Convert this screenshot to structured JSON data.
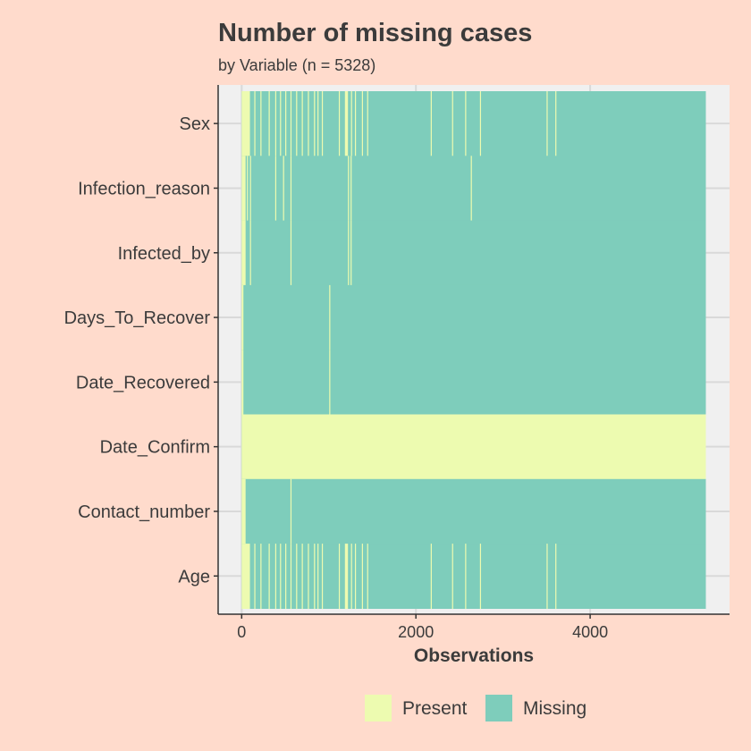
{
  "chart_data": {
    "type": "heatmap",
    "title": "Number of missing cases",
    "subtitle": "by Variable (n = 5328)",
    "xlabel": "Observations",
    "ylabel": "",
    "xlim": [
      -270,
      5600
    ],
    "xticks": [
      0,
      2000,
      4000
    ],
    "n": 5328,
    "variables": [
      "Sex",
      "Infection_reason",
      "Infected_by",
      "Days_To_Recover",
      "Date_Recovered",
      "Date_Confirm",
      "Contact_number",
      "Age"
    ],
    "legend": [
      {
        "label": "Present",
        "color": "#EDFBB0"
      },
      {
        "label": "Missing",
        "color": "#7ECDBB"
      }
    ],
    "legend_position": "bottom",
    "grid": true,
    "rows": [
      {
        "variable": "Sex",
        "present_ranges": [
          [
            0,
            95
          ],
          [
            145,
            155
          ],
          [
            215,
            220
          ],
          [
            310,
            318
          ],
          [
            385,
            392
          ],
          [
            440,
            446
          ],
          [
            500,
            505
          ],
          [
            560,
            566
          ],
          [
            625,
            631
          ],
          [
            690,
            696
          ],
          [
            760,
            766
          ],
          [
            830,
            838
          ],
          [
            870,
            876
          ],
          [
            920,
            927
          ],
          [
            1115,
            1120
          ],
          [
            1185,
            1220
          ],
          [
            1255,
            1260
          ],
          [
            1300,
            1305
          ],
          [
            1380,
            1385
          ],
          [
            1440,
            1445
          ],
          [
            2170,
            2175
          ],
          [
            2415,
            2420
          ],
          [
            2565,
            2570
          ],
          [
            2735,
            2740
          ],
          [
            3500,
            3505
          ],
          [
            3600,
            3605
          ]
        ]
      },
      {
        "variable": "Infection_reason",
        "present_ranges": [
          [
            0,
            45
          ],
          [
            60,
            65
          ],
          [
            95,
            100
          ],
          [
            385,
            392
          ],
          [
            475,
            480
          ],
          [
            560,
            566
          ],
          [
            1220,
            1226
          ],
          [
            1250,
            1255
          ],
          [
            2630,
            2635
          ]
        ]
      },
      {
        "variable": "Infected_by",
        "present_ranges": [
          [
            0,
            45
          ],
          [
            95,
            100
          ],
          [
            560,
            566
          ],
          [
            1220,
            1226
          ],
          [
            1250,
            1255
          ]
        ]
      },
      {
        "variable": "Days_To_Recover",
        "present_ranges": [
          [
            0,
            20
          ],
          [
            1005,
            1012
          ]
        ]
      },
      {
        "variable": "Date_Recovered",
        "present_ranges": [
          [
            0,
            20
          ],
          [
            1005,
            1012
          ]
        ]
      },
      {
        "variable": "Date_Confirm",
        "present_ranges": [
          [
            0,
            5328
          ]
        ]
      },
      {
        "variable": "Contact_number",
        "present_ranges": [
          [
            0,
            45
          ],
          [
            560,
            566
          ]
        ]
      },
      {
        "variable": "Age",
        "present_ranges": [
          [
            0,
            95
          ],
          [
            145,
            155
          ],
          [
            215,
            220
          ],
          [
            310,
            318
          ],
          [
            385,
            392
          ],
          [
            440,
            446
          ],
          [
            500,
            505
          ],
          [
            560,
            566
          ],
          [
            625,
            631
          ],
          [
            690,
            696
          ],
          [
            760,
            766
          ],
          [
            830,
            838
          ],
          [
            870,
            876
          ],
          [
            920,
            927
          ],
          [
            1115,
            1120
          ],
          [
            1185,
            1220
          ],
          [
            1255,
            1260
          ],
          [
            1300,
            1305
          ],
          [
            1380,
            1385
          ],
          [
            1440,
            1445
          ],
          [
            2170,
            2175
          ],
          [
            2415,
            2420
          ],
          [
            2565,
            2570
          ],
          [
            2735,
            2740
          ],
          [
            3500,
            3505
          ],
          [
            3600,
            3605
          ]
        ]
      }
    ]
  }
}
